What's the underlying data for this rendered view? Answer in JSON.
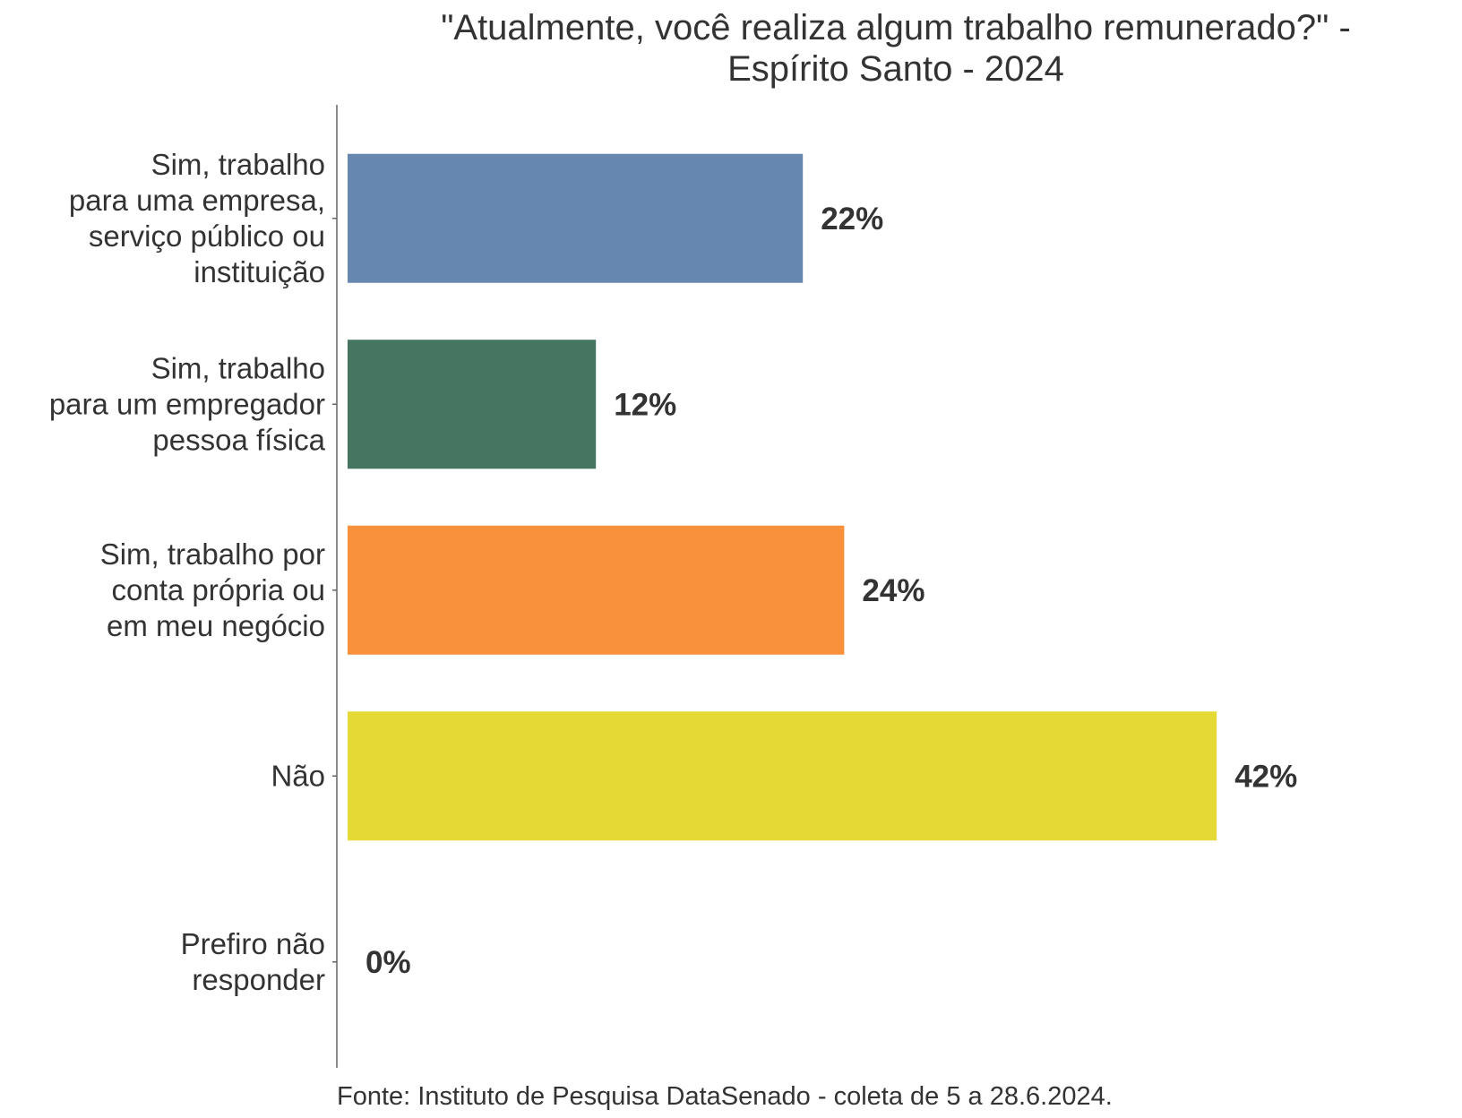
{
  "chart_data": {
    "type": "bar",
    "orientation": "horizontal",
    "title": "\"Atualmente, você realiza algum trabalho remunerado?\" - Espírito Santo - 2024",
    "title_lines": [
      "\"Atualmente, você realiza algum trabalho remunerado?\" -",
      "Espírito Santo - 2024"
    ],
    "categories": [
      "Sim, trabalho para uma empresa, serviço público ou instituição",
      "Sim, trabalho para um empregador pessoa física",
      "Sim, trabalho por conta própria ou em meu negócio",
      "Não",
      "Prefiro não responder"
    ],
    "category_lines": [
      [
        "Sim, trabalho",
        "para uma empresa,",
        "serviço público ou",
        "instituição"
      ],
      [
        "Sim, trabalho",
        "para um empregador",
        "pessoa física"
      ],
      [
        "Sim, trabalho por",
        "conta própria ou",
        "em meu negócio"
      ],
      [
        "Não"
      ],
      [
        "Prefiro não",
        "responder"
      ]
    ],
    "values": [
      22,
      12,
      24,
      42,
      0
    ],
    "value_labels": [
      "22%",
      "12%",
      "24%",
      "42%",
      "0%"
    ],
    "colors": [
      "#6688b0",
      "#457662",
      "#f9913c",
      "#e5d935",
      "#999999"
    ],
    "unit": "%",
    "xlim": [
      0,
      42
    ],
    "grid": false,
    "legend": "none",
    "source": "Fonte: Instituto de Pesquisa DataSenado - coleta de 5 a 28.6.2024."
  }
}
